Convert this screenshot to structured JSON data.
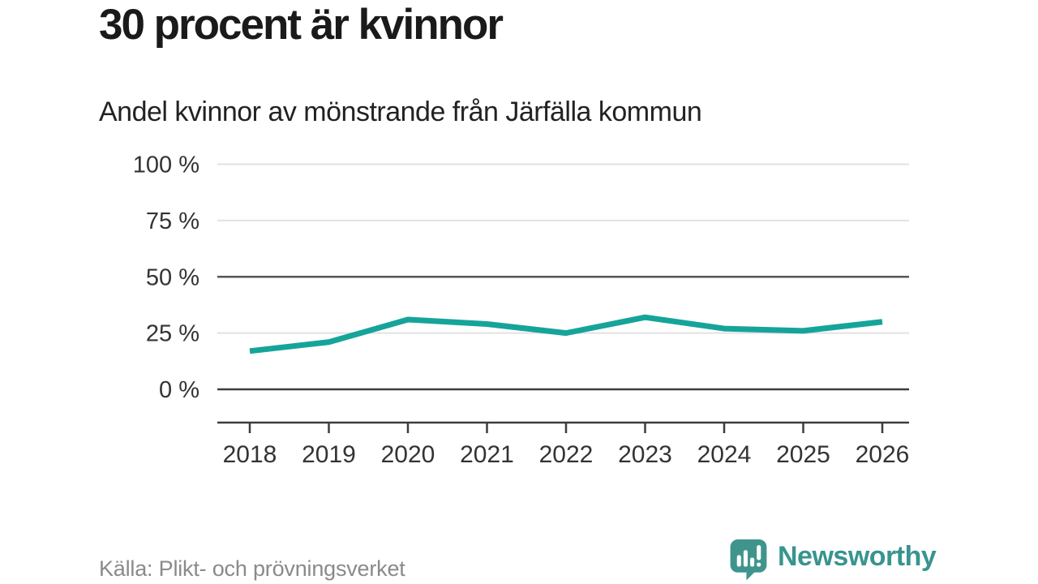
{
  "page": {
    "title": "30 procent är kvinnor",
    "subtitle": "Andel kvinnor av mönstrande från Järfälla kommun"
  },
  "chart_data": {
    "type": "line",
    "title": "30 procent är kvinnor",
    "subtitle": "Andel kvinnor av mönstrande från Järfälla kommun",
    "categories": [
      "2018",
      "2019",
      "2020",
      "2021",
      "2022",
      "2023",
      "2024",
      "2025",
      "2026"
    ],
    "series": [
      {
        "name": "Andel kvinnor av mönstrande",
        "values": [
          17,
          21,
          31,
          29,
          25,
          32,
          27,
          26,
          30
        ]
      }
    ],
    "unit": "%",
    "ylim": [
      0,
      100
    ],
    "yticks": [
      0,
      25,
      50,
      75,
      100
    ],
    "ytick_labels": [
      "0 %",
      "25 %",
      "50 %",
      "75 %",
      "100 %"
    ],
    "xlabel": "",
    "ylabel": "",
    "grid": true,
    "legend": "none",
    "line_color": "#16a49a"
  },
  "footer": {
    "source": "Källa: Plikt- och prövningsverket",
    "brand": "Newsworthy"
  },
  "colors": {
    "accent": "#16a49a",
    "brand_teal": "#38948e",
    "logo_teal": "#3f958e",
    "grid_light": "#e2e2e2",
    "grid_dark": "#55565a",
    "axis_dark": "#3d3d3d",
    "text_dark": "#333333",
    "text_muted": "#8a8a8a"
  },
  "icons": {
    "logo": "newsworthy-speech-bubble-bar-chart-icon"
  }
}
